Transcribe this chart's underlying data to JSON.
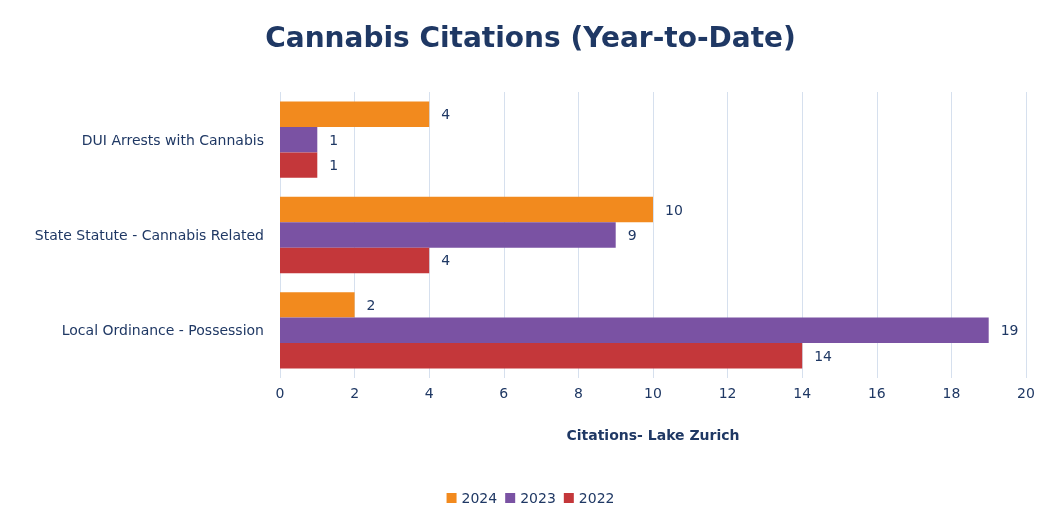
{
  "chart_data": {
    "type": "bar",
    "orientation": "horizontal",
    "title": "Cannabis Citations (Year-to-Date)",
    "xlabel": "Citations- Lake Zurich",
    "categories": [
      "DUI Arrests with Cannabis",
      "State Statute - Cannabis Related",
      "Local Ordinance - Possession"
    ],
    "series": [
      {
        "name": "2024",
        "color": "#f28a1e",
        "values": [
          4,
          10,
          2
        ]
      },
      {
        "name": "2023",
        "color": "#7a52a3",
        "values": [
          1,
          9,
          19
        ]
      },
      {
        "name": "2022",
        "color": "#c4373a",
        "values": [
          1,
          4,
          14
        ]
      }
    ],
    "xlim": [
      0,
      20
    ],
    "xticks": [
      0,
      2,
      4,
      6,
      8,
      10,
      12,
      14,
      16,
      18,
      20
    ],
    "grid": "x",
    "legend": "bottom",
    "data_labels": true
  }
}
